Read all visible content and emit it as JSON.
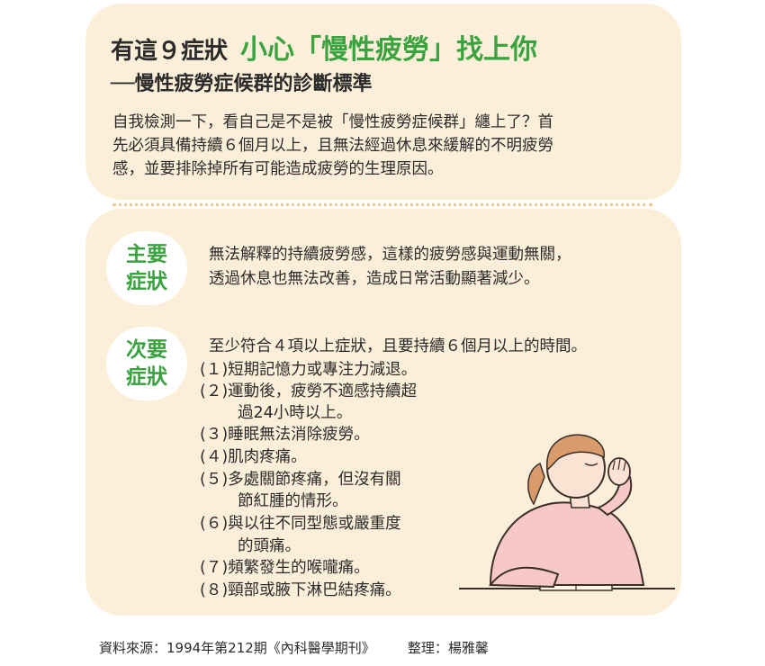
{
  "header": {
    "title_prefix": "有這９症狀",
    "title_highlight": "小心「慢性疲勞」找上你",
    "subtitle": "──慢性疲勞症候群的診斷標準"
  },
  "intro": {
    "lines": [
      "自我檢測一下，看自己是不是被「慢性疲勞症候群」纏上了？首",
      "先必須具備持續６個月以上，且無法經過休息來緩解的不明疲勞",
      "感，並要排除掉所有可能造成疲勞的生理原因。"
    ]
  },
  "main_symptom": {
    "badge_line1": "主要",
    "badge_line2": "症狀",
    "lines": [
      "無法解釋的持續疲勞感，這樣的疲勞感與運動無關，",
      "透過休息也無法改善，造成日常活動顯著減少。"
    ]
  },
  "secondary_symptom": {
    "badge_line1": "次要",
    "badge_line2": "症狀",
    "intro": "至少符合４項以上症狀，且要持續６個月以上的時間。",
    "items": [
      {
        "text": "(１)短期記憶力或專注力減退。"
      },
      {
        "text": "(２)運動後，疲勞不適感持續超",
        "cont": "過24小時以上。"
      },
      {
        "text": "(３)睡眠無法消除疲勞。"
      },
      {
        "text": "(４)肌肉疼痛。"
      },
      {
        "text": "(５)多處關節疼痛，但沒有關",
        "cont": "節紅腫的情形。"
      },
      {
        "text": "(６)與以往不同型態或嚴重度",
        "cont": "的頭痛。"
      },
      {
        "text": "(７)頻繁發生的喉嚨痛。"
      },
      {
        "text": "(８)頸部或腋下淋巴結疼痛。"
      }
    ]
  },
  "footer": {
    "source": "資料來源：1994年第212期《內科醫學期刊》",
    "credit": "整理：楊雅馨"
  },
  "colors": {
    "card_bg": "#fcefd9",
    "accent_green": "#3aa23f",
    "sweater": "#f6c9c7",
    "hair": "#d99a6c"
  }
}
